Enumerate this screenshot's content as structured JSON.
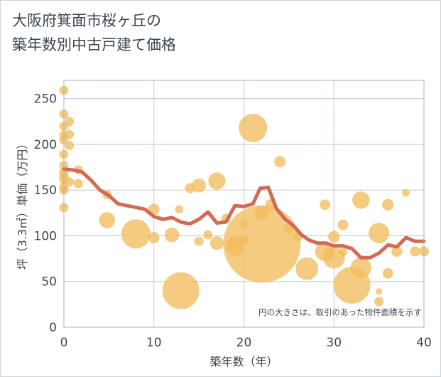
{
  "title": {
    "line1": "大阪府箕面市桜ヶ丘の",
    "line2": "築年数別中古戸建て価格"
  },
  "chart_data": {
    "type": "scatter",
    "xlabel": "築年数（年）",
    "ylabel": "坪（3.3㎡）単価（万円）",
    "xlim": [
      0,
      40
    ],
    "ylim": [
      0,
      270
    ],
    "xticks": [
      0,
      10,
      20,
      30,
      40
    ],
    "yticks": [
      0,
      50,
      100,
      150,
      200,
      250
    ],
    "grid": true,
    "note": "円の大きさは、取引のあった物件面積を示す",
    "colors": {
      "bubble": "#f2bd5f",
      "line": "#d26a54",
      "grid": "#b9ccd6",
      "plot_border": "#9fb3bf"
    },
    "series": [
      {
        "type": "bubble",
        "points": [
          {
            "x": 0,
            "y": 259,
            "size": 1
          },
          {
            "x": 0,
            "y": 233,
            "size": 1
          },
          {
            "x": 0,
            "y": 220,
            "size": 1
          },
          {
            "x": 0,
            "y": 210,
            "size": 1
          },
          {
            "x": 0,
            "y": 205,
            "size": 1
          },
          {
            "x": 0,
            "y": 189,
            "size": 1
          },
          {
            "x": 0,
            "y": 177,
            "size": 1
          },
          {
            "x": 0,
            "y": 170,
            "size": 1
          },
          {
            "x": 0,
            "y": 165,
            "size": 1
          },
          {
            "x": 0,
            "y": 161,
            "size": 1
          },
          {
            "x": 0,
            "y": 153,
            "size": 1
          },
          {
            "x": 0,
            "y": 150,
            "size": 1
          },
          {
            "x": 0,
            "y": 131,
            "size": 1
          },
          {
            "x": 0.6,
            "y": 225,
            "size": 1
          },
          {
            "x": 0.6,
            "y": 211,
            "size": 1
          },
          {
            "x": 0.6,
            "y": 199,
            "size": 1
          },
          {
            "x": 0.6,
            "y": 159,
            "size": 1
          },
          {
            "x": 1.6,
            "y": 172,
            "size": 1
          },
          {
            "x": 1.6,
            "y": 157,
            "size": 1
          },
          {
            "x": 4.8,
            "y": 145,
            "size": 1
          },
          {
            "x": 4.8,
            "y": 117,
            "size": 3
          },
          {
            "x": 8.0,
            "y": 102,
            "size": 10
          },
          {
            "x": 10.0,
            "y": 129,
            "size": 1.5
          },
          {
            "x": 10.0,
            "y": 98,
            "size": 1.5
          },
          {
            "x": 12.0,
            "y": 101,
            "size": 2.5
          },
          {
            "x": 12.8,
            "y": 129,
            "size": 0.8
          },
          {
            "x": 13.0,
            "y": 40,
            "size": 16
          },
          {
            "x": 14.0,
            "y": 152,
            "size": 1.2
          },
          {
            "x": 15.0,
            "y": 155,
            "size": 2.3
          },
          {
            "x": 15.0,
            "y": 94,
            "size": 1
          },
          {
            "x": 16.0,
            "y": 101,
            "size": 1
          },
          {
            "x": 17.0,
            "y": 160,
            "size": 3.5
          },
          {
            "x": 17.0,
            "y": 92,
            "size": 2.2
          },
          {
            "x": 18.0,
            "y": 119,
            "size": 1
          },
          {
            "x": 19.0,
            "y": 88,
            "size": 4
          },
          {
            "x": 19.0,
            "y": 93,
            "size": 2
          },
          {
            "x": 20.0,
            "y": 96,
            "size": 1
          },
          {
            "x": 20.0,
            "y": 113,
            "size": 0.8
          },
          {
            "x": 21.0,
            "y": 218,
            "size": 9.5
          },
          {
            "x": 22.0,
            "y": 91,
            "size": 70
          },
          {
            "x": 22.0,
            "y": 125,
            "size": 2.5
          },
          {
            "x": 23.0,
            "y": 134,
            "size": 1.5
          },
          {
            "x": 24.0,
            "y": 181,
            "size": 1.5
          },
          {
            "x": 25.0,
            "y": 107,
            "size": 1
          },
          {
            "x": 26.0,
            "y": 99,
            "size": 1
          },
          {
            "x": 27.0,
            "y": 64,
            "size": 6
          },
          {
            "x": 29.0,
            "y": 134,
            "size": 1.3
          },
          {
            "x": 29.0,
            "y": 83,
            "size": 4.5
          },
          {
            "x": 30.0,
            "y": 76,
            "size": 5.5
          },
          {
            "x": 30.0,
            "y": 99,
            "size": 1.6
          },
          {
            "x": 31.0,
            "y": 112,
            "size": 1.3
          },
          {
            "x": 31.0,
            "y": 82,
            "size": 0.8
          },
          {
            "x": 32.0,
            "y": 46,
            "size": 16
          },
          {
            "x": 33.0,
            "y": 139,
            "size": 3.5
          },
          {
            "x": 33.0,
            "y": 65,
            "size": 5
          },
          {
            "x": 35.0,
            "y": 103,
            "size": 5
          },
          {
            "x": 35.0,
            "y": 39,
            "size": 0.5
          },
          {
            "x": 35.0,
            "y": 28,
            "size": 1
          },
          {
            "x": 36.0,
            "y": 134,
            "size": 1.6
          },
          {
            "x": 36.0,
            "y": 59,
            "size": 1.3
          },
          {
            "x": 37.0,
            "y": 83,
            "size": 1.4
          },
          {
            "x": 38.0,
            "y": 147,
            "size": 0.7
          },
          {
            "x": 39.0,
            "y": 83,
            "size": 1.2
          },
          {
            "x": 40.0,
            "y": 83,
            "size": 1.2
          }
        ]
      },
      {
        "type": "line",
        "points": [
          {
            "x": 0,
            "y": 173
          },
          {
            "x": 1,
            "y": 172
          },
          {
            "x": 2,
            "y": 170
          },
          {
            "x": 3,
            "y": 161
          },
          {
            "x": 4,
            "y": 150
          },
          {
            "x": 5,
            "y": 144
          },
          {
            "x": 6,
            "y": 135
          },
          {
            "x": 7,
            "y": 133
          },
          {
            "x": 8,
            "y": 131
          },
          {
            "x": 9,
            "y": 129
          },
          {
            "x": 10,
            "y": 121
          },
          {
            "x": 11,
            "y": 118
          },
          {
            "x": 12,
            "y": 120
          },
          {
            "x": 13,
            "y": 115
          },
          {
            "x": 14,
            "y": 113
          },
          {
            "x": 15,
            "y": 118
          },
          {
            "x": 16,
            "y": 126
          },
          {
            "x": 17,
            "y": 114
          },
          {
            "x": 18,
            "y": 115
          },
          {
            "x": 19,
            "y": 133
          },
          {
            "x": 20,
            "y": 132
          },
          {
            "x": 21,
            "y": 135
          },
          {
            "x": 21.8,
            "y": 152
          },
          {
            "x": 22.7,
            "y": 153
          },
          {
            "x": 23.6,
            "y": 130
          },
          {
            "x": 24.5,
            "y": 119
          },
          {
            "x": 25.5,
            "y": 111
          },
          {
            "x": 26.4,
            "y": 101
          },
          {
            "x": 27.3,
            "y": 95
          },
          {
            "x": 28.2,
            "y": 92
          },
          {
            "x": 29.1,
            "y": 92
          },
          {
            "x": 30,
            "y": 89
          },
          {
            "x": 31,
            "y": 89
          },
          {
            "x": 32,
            "y": 86
          },
          {
            "x": 33,
            "y": 76
          },
          {
            "x": 34,
            "y": 76
          },
          {
            "x": 35,
            "y": 81
          },
          {
            "x": 36,
            "y": 90
          },
          {
            "x": 37,
            "y": 88
          },
          {
            "x": 38,
            "y": 98
          },
          {
            "x": 39,
            "y": 94
          },
          {
            "x": 40,
            "y": 94
          }
        ]
      }
    ]
  }
}
